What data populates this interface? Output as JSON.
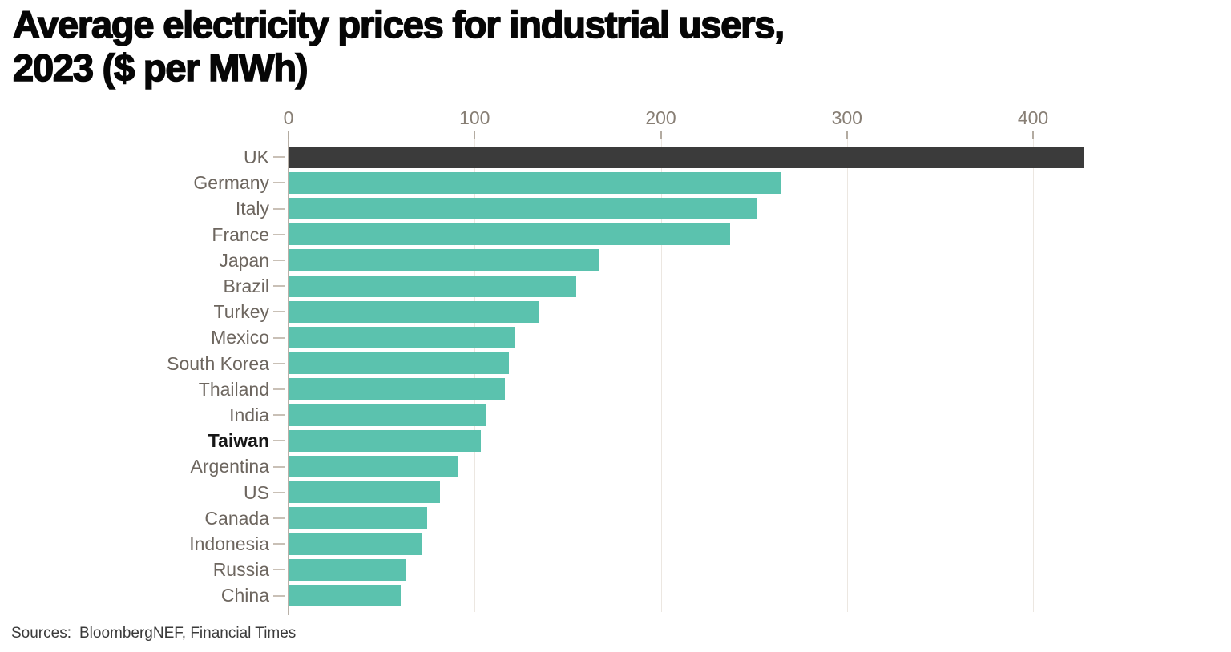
{
  "header": {
    "title_line1": "Average electricity prices for industrial users,",
    "title_line2": "2023 ($ per MWh)"
  },
  "footer": {
    "sources_label": "Sources:",
    "sources_text": "BloombergNEF, Financial Times"
  },
  "chart_data": {
    "type": "bar",
    "orientation": "horizontal",
    "title": "Average electricity prices for industrial users, 2023 ($ per MWh)",
    "xlabel": "",
    "ylabel": "",
    "categories": [
      "UK",
      "Germany",
      "Italy",
      "France",
      "Japan",
      "Brazil",
      "Turkey",
      "Mexico",
      "South Korea",
      "Thailand",
      "India",
      "Taiwan",
      "Argentina",
      "US",
      "Canada",
      "Indonesia",
      "Russia",
      "China"
    ],
    "values": [
      427,
      264,
      251,
      237,
      166,
      154,
      134,
      121,
      118,
      116,
      106,
      103,
      91,
      81,
      74,
      71,
      63,
      60
    ],
    "x_ticks": [
      0,
      100,
      200,
      300,
      400
    ],
    "xlim": [
      0,
      505
    ],
    "grid": "vertical-light",
    "legend": "none",
    "highlight_category": "UK",
    "bold_label_category": "Taiwan",
    "colors": {
      "bar": "#5bc2ae",
      "highlight_bar": "#3b3b3b",
      "axis_text": "#877e74",
      "category_text": "#6d665f",
      "gridline": "#ece7e1"
    },
    "source": "Sources: BloombergNEF, Financial Times"
  }
}
